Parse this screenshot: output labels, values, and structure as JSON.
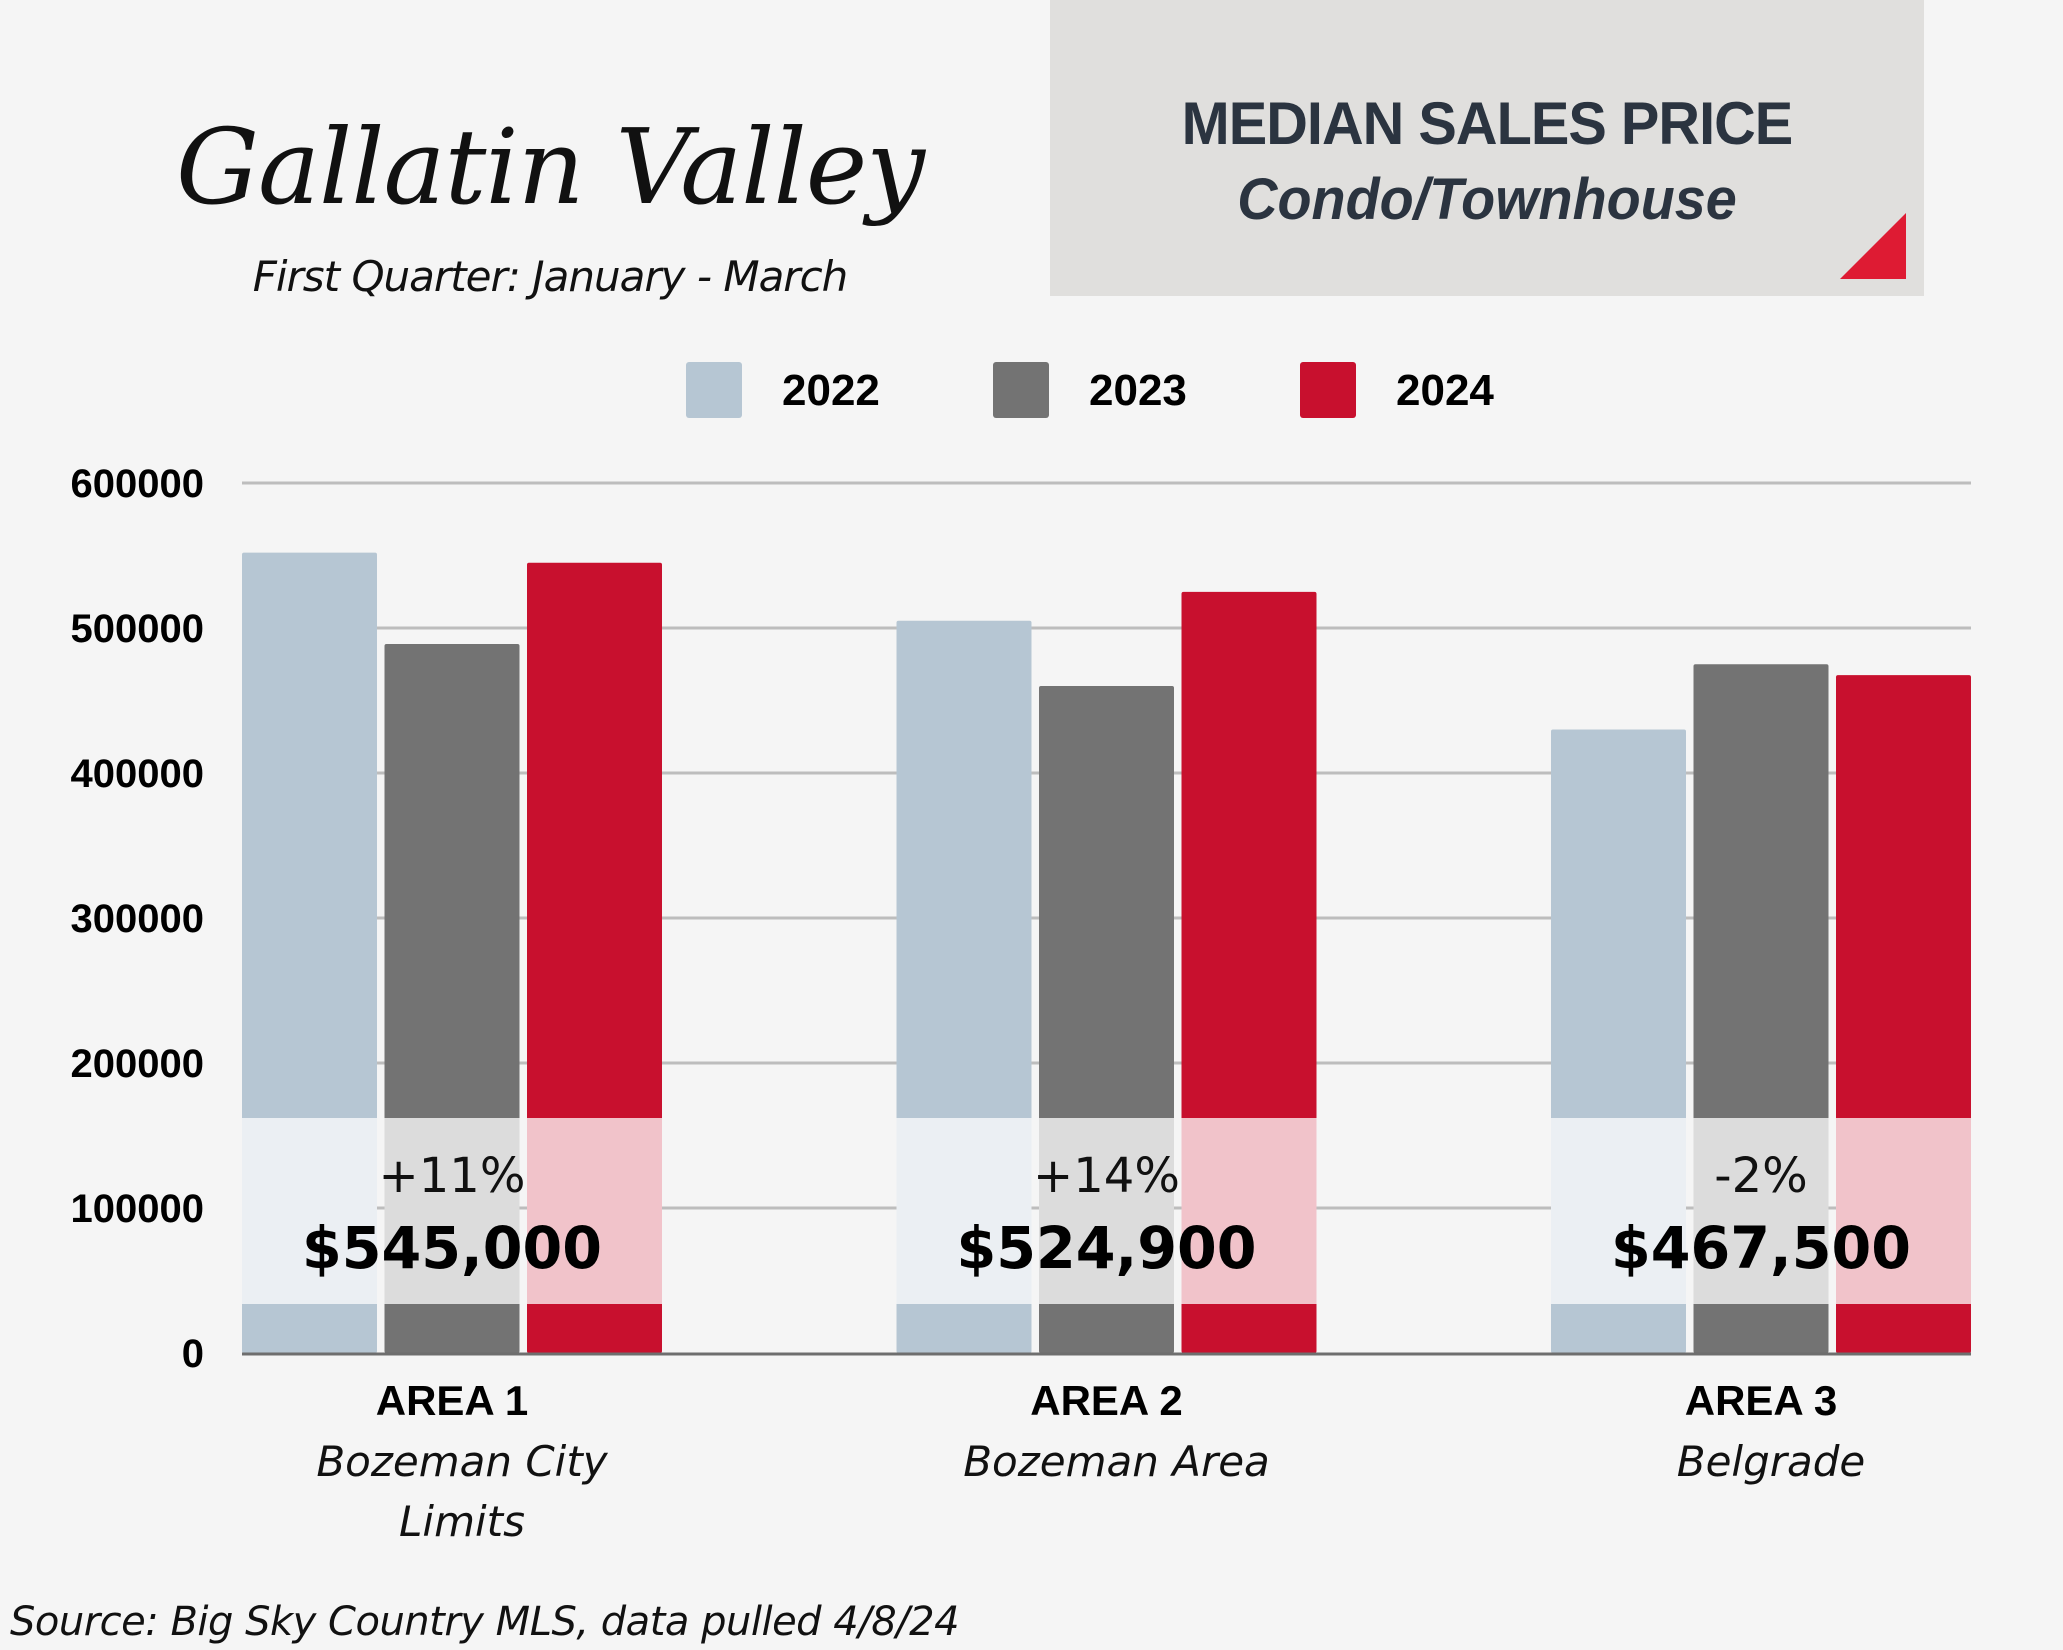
{
  "header": {
    "title": "Gallatin Valley",
    "subtitle": "First Quarter: January - March",
    "box_title": "MEDIAN SALES PRICE",
    "box_subtitle": "Condo/Townhouse"
  },
  "legend": [
    {
      "label": "2022",
      "color": "#B6C6D3"
    },
    {
      "label": "2023",
      "color": "#737373"
    },
    {
      "label": "2024",
      "color": "#C8102E"
    }
  ],
  "footer": {
    "source": "Source:  Big Sky Country MLS, data pulled 4/8/24"
  },
  "chart_data": {
    "type": "bar",
    "title": "MEDIAN SALES PRICE Condo/Townhouse",
    "xlabel": "",
    "ylabel": "",
    "ylim": [
      0,
      600000
    ],
    "yticks": [
      "0",
      "100000",
      "200000",
      "300000",
      "400000",
      "500000",
      "600000"
    ],
    "grid": true,
    "legend_position": "top-center",
    "categories": [
      {
        "title": "AREA 1",
        "subtitle": [
          "Bozeman City",
          "Limits"
        ]
      },
      {
        "title": "AREA 2",
        "subtitle": [
          "Bozeman Area"
        ]
      },
      {
        "title": "AREA 3",
        "subtitle": [
          "Belgrade"
        ]
      }
    ],
    "series": [
      {
        "name": "2022",
        "color": "#B6C6D3",
        "values": [
          552000,
          505000,
          430000
        ]
      },
      {
        "name": "2023",
        "color": "#737373",
        "values": [
          489000,
          460000,
          475000
        ]
      },
      {
        "name": "2024",
        "color": "#C8102E",
        "values": [
          545000,
          524900,
          467500
        ]
      }
    ],
    "annotations": [
      {
        "change": "+11%",
        "value": "$545,000"
      },
      {
        "change": "+14%",
        "value": "$524,900"
      },
      {
        "change": "-2%",
        "value": "$467,500"
      }
    ]
  }
}
